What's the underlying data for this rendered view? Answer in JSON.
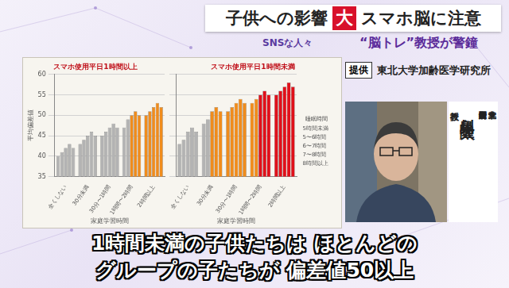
{
  "screen": {
    "headline": [
      "子供への影響",
      "大",
      "スマホ脳に注意"
    ],
    "program_logo": "SNSな人々",
    "subheadline": "“脳トレ”教授が警鐘",
    "credit_label": "提供",
    "credit": "東北大学加齢医学研究所",
    "affiliation": [
      "東北大学",
      "加齢医学研究所"
    ],
    "person_name": "川島 隆太",
    "person_title": "教授",
    "caption": [
      "1時間未満の子供たちは ほとんどの",
      "グループの子たちが 偏差値50以上"
    ]
  },
  "chart_data": [
    {
      "type": "bar",
      "title": "スマホ使用平日1時間以上",
      "y_label": "平均偏差値",
      "x_label": "家庭学習時間",
      "categories": [
        "全くしない",
        "30分未満",
        "30分〜1時間",
        "1時間〜2時間",
        "2時間以上"
      ],
      "series": [
        {
          "name": "5時間未満",
          "values": [
            40,
            43,
            45,
            47,
            50
          ],
          "colors": [
            "#b3b3b3",
            "#b3b3b3",
            "#b3b3b3",
            "#b3b3b3",
            "#f08c1c"
          ]
        },
        {
          "name": "5〜6時間",
          "values": [
            41,
            44,
            46,
            49,
            51
          ],
          "colors": [
            "#b3b3b3",
            "#b3b3b3",
            "#b3b3b3",
            "#b3b3b3",
            "#f08c1c"
          ]
        },
        {
          "name": "6〜7時間",
          "values": [
            42,
            45,
            47,
            50,
            52
          ],
          "colors": [
            "#b3b3b3",
            "#b3b3b3",
            "#b3b3b3",
            "#f08c1c",
            "#f08c1c"
          ]
        },
        {
          "name": "7〜8時間",
          "values": [
            43,
            46,
            48,
            51,
            53
          ],
          "colors": [
            "#b3b3b3",
            "#b3b3b3",
            "#b3b3b3",
            "#f08c1c",
            "#f08c1c"
          ]
        },
        {
          "name": "8時間以上",
          "values": [
            42,
            45,
            47,
            50,
            52
          ],
          "colors": [
            "#b3b3b3",
            "#b3b3b3",
            "#b3b3b3",
            "#f08c1c",
            "#f08c1c"
          ]
        }
      ],
      "ylim": [
        35,
        60
      ],
      "yticks": [
        35,
        40,
        45,
        50,
        55,
        60
      ],
      "grid": true
    },
    {
      "type": "bar",
      "title": "スマホ使用平日1時間未満",
      "x_label": "家庭学習時間",
      "legend_title": "睡眠時間",
      "categories": [
        "全くしない",
        "30分未満",
        "30分〜1時間",
        "1時間〜2時間",
        "2時間以上"
      ],
      "series": [
        {
          "name": "5時間未満",
          "values": [
            43,
            48,
            51,
            53,
            55
          ],
          "colors": [
            "#b3b3b3",
            "#b3b3b3",
            "#f08c1c",
            "#f08c1c",
            "#e0101a"
          ]
        },
        {
          "name": "5〜6時間",
          "values": [
            44,
            49,
            52,
            54,
            56
          ],
          "colors": [
            "#b3b3b3",
            "#b3b3b3",
            "#f08c1c",
            "#f08c1c",
            "#e0101a"
          ]
        },
        {
          "name": "6〜7時間",
          "values": [
            46,
            51,
            53,
            55,
            57
          ],
          "colors": [
            "#b3b3b3",
            "#f08c1c",
            "#f08c1c",
            "#e0101a",
            "#e0101a"
          ]
        },
        {
          "name": "7〜8時間",
          "values": [
            47,
            52,
            54,
            56,
            58
          ],
          "colors": [
            "#b3b3b3",
            "#f08c1c",
            "#f08c1c",
            "#e0101a",
            "#e0101a"
          ]
        },
        {
          "name": "8時間以上",
          "values": [
            46,
            51,
            53,
            55,
            57
          ],
          "colors": [
            "#b3b3b3",
            "#f08c1c",
            "#f08c1c",
            "#e0101a",
            "#e0101a"
          ]
        }
      ],
      "ylim": [
        35,
        60
      ],
      "yticks": [
        35,
        40,
        45,
        50,
        55,
        60
      ],
      "grid": true,
      "tick_labels": "x",
      "legend": "right"
    }
  ]
}
